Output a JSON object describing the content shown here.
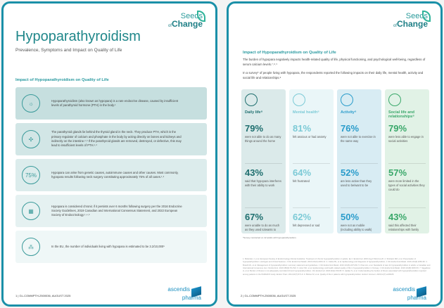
{
  "logo": {
    "line1": "Seeds",
    "line2_pre": "of",
    "line2": "Change"
  },
  "brand": {
    "line1": "ascendis",
    "line2": "pharma"
  },
  "page1": {
    "title": "Hypoparathyroidism",
    "subtitle": "Prevalence, Symptoms and Impact on Quality of Life",
    "heading": "Impact of Hypoparathyroidism on Quality of Life",
    "cards": [
      {
        "icon": "lightbulb-icon",
        "glyph": "☼",
        "text": "Hypoparathyroidism (also known as hypopara) is a rare endocrine disease, caused by insufficient levels of parathyroid hormone (PTH) in the body.¹",
        "bg": "#c6dfdf"
      },
      {
        "icon": "thyroid-icon",
        "glyph": "✣",
        "text": "The parathyroid glands lie behind the thyroid gland in the neck. They produce PTH, which is the primary regulator of calcium and phosphate in the body by acting directly on bones and kidneys and indirectly on the intestine.²˒³ If the parathyroid glands are removed, destroyed, or defective, this may lead to insufficient levels of PTH.¹˒²",
        "bg": "#d2e6e6"
      },
      {
        "icon": "percent-icon",
        "glyph": "75%",
        "text": "Hypopara can arise from genetic causes, autoimmune causes and other causes. Most commonly, hypopara results following neck surgery constituting approximately 75% of all cases.¹˒²",
        "bg": "#dcecec"
      },
      {
        "icon": "calendar-icon",
        "glyph": "▦",
        "text": "Hypopara is considered chronic if it persists over 6 months following surgery per the 2016 Endocrine Society Guidelines, 2019 Canadian and International Consensus Statement, and 2022 European Society of Endocrinology.¹˒⁴˒⁵",
        "bg": "#e5f1f1"
      },
      {
        "icon": "eu-stars-icon",
        "glyph": "⁂",
        "text": "In the EU, the number of individuals living with hypopara is estimated to be 3.2/10,000⁶",
        "bg": "#eff7f7"
      }
    ],
    "footer": "1 | GL-COMMPTH-2500036, AUGUST 2025"
  },
  "page2": {
    "heading": "Impact of Hypoparathyroidism on Quality of Life",
    "para1": "The burden of hypopara negatively impacts health-related quality of life, physical functioning, and psychological well-being, regardless of serum calcium levels.⁷˒⁸˒⁹",
    "para2": "In a survey* of people living with hypopara, the respondents reported the following impacts on their daily life, mental health, activity and social life and relationships.⁸",
    "columns": [
      {
        "label": "Daily life⁸",
        "icon": "person-at-desk-icon",
        "color": "#1f6f6f",
        "bg": "#dbeaea",
        "stats": [
          {
            "pct": "79%",
            "desc": "were not able to do as many things around the home"
          },
          {
            "pct": "43%",
            "desc": "said that hypopara interferes with their ability to work"
          },
          {
            "pct": "67%",
            "desc": "were unable to do as much as they used to/wants to"
          }
        ]
      },
      {
        "label": "Mental health⁸",
        "icon": "head-brain-icon",
        "color": "#7ccad6",
        "bg": "#eaf6f8",
        "stats": [
          {
            "pct": "81%",
            "desc": "felt anxious or had anxiety"
          },
          {
            "pct": "64%",
            "desc": "felt frustrated"
          },
          {
            "pct": "62%",
            "desc": "felt depressed or sad"
          }
        ]
      },
      {
        "label": "Activity⁸",
        "icon": "body-icon",
        "color": "#2a9ccb",
        "bg": "#d8ecf3",
        "stats": [
          {
            "pct": "76%",
            "desc": "were not able to exercise in the same way"
          },
          {
            "pct": "52%",
            "desc": "are less active than they used to be/want to be"
          },
          {
            "pct": "50%",
            "desc": "were not as mobile (including ability to walk)"
          }
        ]
      },
      {
        "label": "Social life and relationships⁸",
        "icon": "heart-icon",
        "color": "#3aa86a",
        "bg": "#e1f2e6",
        "stats": [
          {
            "pct": "79%",
            "desc": "were less able to engage in social activities"
          },
          {
            "pct": "57%",
            "desc": "were more limited in the types of social activities they could do"
          },
          {
            "pct": "43%",
            "desc": "said this affected their relationships with family"
          }
        ]
      }
    ],
    "note": "*Survey conducted on 42 adults with hypoparathyroidism.",
    "references": "1. Bollerslev J, et al. European Society of Endocrinology Clinical Guideline: Treatment of chronic hypoparathyroidism in adults. Eur J Endocrinol. 2015 Aug;173(2):G1-20. 2. Shoback DM, et al. Presentation of hypoparathyroidism: etiologies and clinical features. J Clin Endocrinol Metab. 2016;101(6):2300-12. 3. Clarke BL, et al. Epidemiology and diagnosis of hypoparathyroidism. J Clin Endocrinol Metab. 2016;101(6):2284-99. 4. Brandi ML, et al. Management of hypoparathyroidism: summary statement and guidelines. J Clin Endocrinol Metab. 2016;101(6):2273-83. 5. Khan AA, et al. Standards of care for hypoparathyroidism in adults: a Canadian and International Consensus. Eur J Endocrinol. 2019;180(3):P1-P22. 6. Astor MC, et al. Epidemiology and health-related quality of life in hypoparathyroidism in Norway. J Clin Endocrinol Metab. 2016;101(8):3045-53. 7. Siggelkow H, et al. Burden of illness in not adequately controlled chronic hypoparathyroidism. Clin Endocrinol. 2020;92(2):159-68. 8. Hadker N, et al. Understanding the burden of illness associated with hypoparathyroidism reported among patients in the PARADOX study. Endocr Pract. 2014;20(7):671-9. 9. Büttner M, et al. Quality of life in patients with hypoparathyroidism. Endocr Connect. 2023;12(7):e230105.",
    "footer": "2 | GL-COMMPTH-2500036, AUGUST 2025"
  }
}
